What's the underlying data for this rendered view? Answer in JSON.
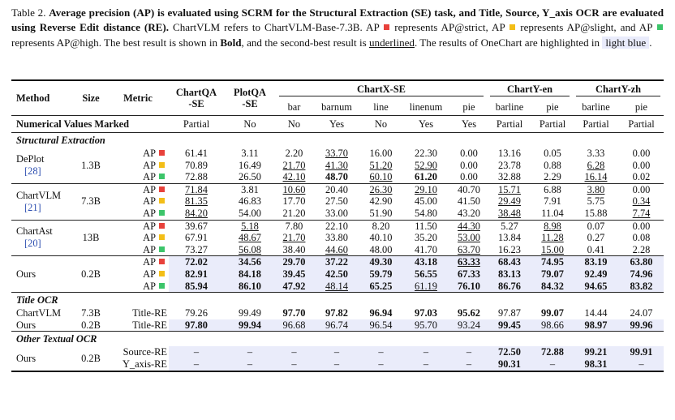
{
  "caption": {
    "label": "Table 2.",
    "bold": "Average precision (AP) is evaluated using SCRM for the Structural Extraction (SE) task, and Title, Source, Y_axis OCR are evaluated using Reverse Edit distance (RE).",
    "t1": "ChartVLM refers to ChartVLM-Base-7.3B. AP",
    "t2": "represents AP@strict, AP",
    "t3": "represents AP@slight, and AP",
    "t4": "represents AP@high.  The best result is shown in",
    "bold_word": "Bold",
    "t5": ", and the second-best result is",
    "underlined_word": "underlined",
    "t6": ".  The results of OneChart are highlighted in",
    "light_blue": "light blue",
    "t7": ".",
    "colors": {
      "strict": "#e8413b",
      "slight": "#f3be17",
      "high": "#3cc56a",
      "highlight": "#eaecfa"
    }
  },
  "headers": {
    "method": "Method",
    "size": "Size",
    "metric": "Metric",
    "chartqa_1": "ChartQA",
    "chartqa_2": "-SE",
    "plotqa_1": "PlotQA",
    "plotqa_2": "-SE",
    "chartx": "ChartX-SE",
    "charty_en": "ChartY-en",
    "charty_zh": "ChartY-zh",
    "sub": [
      "bar",
      "barnum",
      "line",
      "linenum",
      "pie",
      "barline",
      "pie",
      "barline",
      "pie"
    ],
    "num_label": "Numerical Values Marked",
    "num_values": [
      "Partial",
      "No",
      "No",
      "Yes",
      "No",
      "Yes",
      "Yes",
      "Partial",
      "Partial",
      "Partial",
      "Partial"
    ]
  },
  "sections": {
    "se": "Structural Extraction",
    "title": "Title OCR",
    "other": "Other Textual OCR"
  },
  "ap_label": "AP",
  "se_rows": [
    {
      "method": "DePlot",
      "ref": "[28]",
      "size": "1.3B",
      "rows": [
        {
          "c": "red",
          "v": [
            "61.41",
            "3.11",
            "2.20",
            "33.70",
            "16.00",
            "22.30",
            "0.00",
            "13.16",
            "0.05",
            "3.33",
            "0.00"
          ],
          "f": [
            "",
            "",
            "",
            "u",
            "",
            "",
            "",
            "",
            "",
            "",
            ""
          ]
        },
        {
          "c": "yel",
          "v": [
            "70.89",
            "16.49",
            "21.70",
            "41.30",
            "51.20",
            "52.90",
            "0.00",
            "23.78",
            "0.88",
            "6.28",
            "0.00"
          ],
          "f": [
            "",
            "",
            "u",
            "u",
            "u",
            "u",
            "",
            "",
            "",
            "u",
            ""
          ]
        },
        {
          "c": "grn",
          "v": [
            "72.88",
            "26.50",
            "42.10",
            "48.70",
            "60.10",
            "61.20",
            "0.00",
            "32.88",
            "2.29",
            "16.14",
            "0.02"
          ],
          "f": [
            "",
            "",
            "u",
            "b",
            "u",
            "b",
            "",
            "",
            "",
            "u",
            ""
          ]
        }
      ]
    },
    {
      "method": "ChartVLM",
      "ref": "[21]",
      "size": "7.3B",
      "rows": [
        {
          "c": "red",
          "v": [
            "71.84",
            "3.81",
            "10.60",
            "20.40",
            "26.30",
            "29.10",
            "40.70",
            "15.71",
            "6.88",
            "3.80",
            "0.00"
          ],
          "f": [
            "u",
            "",
            "u",
            "",
            "u",
            "u",
            "",
            "u",
            "",
            "u",
            ""
          ]
        },
        {
          "c": "yel",
          "v": [
            "81.35",
            "46.83",
            "17.70",
            "27.50",
            "42.90",
            "45.00",
            "41.50",
            "29.49",
            "7.91",
            "5.75",
            "0.34"
          ],
          "f": [
            "u",
            "",
            "",
            "",
            "",
            "",
            "",
            "u",
            "",
            "",
            "u"
          ]
        },
        {
          "c": "grn",
          "v": [
            "84.20",
            "54.00",
            "21.20",
            "33.00",
            "51.90",
            "54.80",
            "43.20",
            "38.48",
            "11.04",
            "15.88",
            "7.74"
          ],
          "f": [
            "u",
            "",
            "",
            "",
            "",
            "",
            "",
            "u",
            "",
            "",
            "u"
          ]
        }
      ]
    },
    {
      "method": "ChartAst",
      "ref": "[20]",
      "size": "13B",
      "rows": [
        {
          "c": "red",
          "v": [
            "39.67",
            "5.18",
            "7.80",
            "22.10",
            "8.20",
            "11.50",
            "44.30",
            "5.27",
            "8.98",
            "0.07",
            "0.00"
          ],
          "f": [
            "",
            "u",
            "",
            "",
            "",
            "",
            "u",
            "",
            "u",
            "",
            ""
          ]
        },
        {
          "c": "yel",
          "v": [
            "67.91",
            "48.67",
            "21.70",
            "33.80",
            "40.10",
            "35.20",
            "53.00",
            "13.84",
            "11.28",
            "0.27",
            "0.08"
          ],
          "f": [
            "",
            "u",
            "u",
            "",
            "",
            "",
            "u",
            "",
            "u",
            "",
            ""
          ]
        },
        {
          "c": "grn",
          "v": [
            "73.27",
            "56.08",
            "38.40",
            "44.60",
            "48.00",
            "41.70",
            "63.70",
            "16.23",
            "15.00",
            "0.41",
            "2.28"
          ],
          "f": [
            "",
            "u",
            "",
            "u",
            "",
            "",
            "u",
            "",
            "u",
            "",
            ""
          ]
        }
      ]
    },
    {
      "method": "Ours",
      "ref": "",
      "size": "0.2B",
      "hl": true,
      "rows": [
        {
          "c": "red",
          "v": [
            "72.02",
            "34.56",
            "29.70",
            "37.22",
            "49.30",
            "43.18",
            "63.33",
            "68.43",
            "74.95",
            "83.19",
            "63.80"
          ],
          "f": [
            "b",
            "b",
            "b",
            "b",
            "b",
            "b",
            "bu",
            "b",
            "b",
            "b",
            "b"
          ]
        },
        {
          "c": "yel",
          "v": [
            "82.91",
            "84.18",
            "39.45",
            "42.50",
            "59.79",
            "56.55",
            "67.33",
            "83.13",
            "79.07",
            "92.49",
            "74.96"
          ],
          "f": [
            "b",
            "b",
            "b",
            "b",
            "b",
            "b",
            "b",
            "b",
            "b",
            "b",
            "b"
          ]
        },
        {
          "c": "grn",
          "v": [
            "85.94",
            "86.10",
            "47.92",
            "48.14",
            "65.25",
            "61.19",
            "76.10",
            "86.76",
            "84.32",
            "94.65",
            "83.82"
          ],
          "f": [
            "b",
            "b",
            "b",
            "u",
            "b",
            "u",
            "b",
            "b",
            "b",
            "b",
            "b"
          ]
        }
      ]
    }
  ],
  "title_rows": [
    {
      "method": "ChartVLM",
      "size": "7.3B",
      "metric": "Title-RE",
      "v": [
        "79.26",
        "99.49",
        "97.70",
        "97.82",
        "96.94",
        "97.03",
        "95.62",
        "97.87",
        "99.07",
        "14.44",
        "24.07"
      ],
      "f": [
        "",
        "",
        "b",
        "b",
        "b",
        "b",
        "b",
        "",
        "b",
        "",
        ""
      ]
    },
    {
      "method": "Ours",
      "size": "0.2B",
      "metric": "Title-RE",
      "hl": true,
      "v": [
        "97.80",
        "99.94",
        "96.68",
        "96.74",
        "96.54",
        "95.70",
        "93.24",
        "99.45",
        "98.66",
        "98.97",
        "99.96"
      ],
      "f": [
        "b",
        "b",
        "",
        "",
        "",
        "",
        "",
        "b",
        "",
        "b",
        "b"
      ]
    }
  ],
  "other_rows": [
    {
      "method": "Ours",
      "size": "0.2B",
      "metric": "Source-RE",
      "v": [
        "–",
        "–",
        "–",
        "–",
        "–",
        "–",
        "–",
        "72.50",
        "72.88",
        "99.21",
        "99.91"
      ],
      "f": [
        "",
        "",
        "",
        "",
        "",
        "",
        "",
        "b",
        "b",
        "b",
        "b"
      ]
    },
    {
      "method": "",
      "size": "",
      "metric": "Y_axis-RE",
      "v": [
        "–",
        "–",
        "–",
        "–",
        "–",
        "–",
        "–",
        "90.31",
        "–",
        "98.31",
        "–"
      ],
      "f": [
        "",
        "",
        "",
        "",
        "",
        "",
        "",
        "b",
        "",
        "b",
        ""
      ]
    }
  ]
}
